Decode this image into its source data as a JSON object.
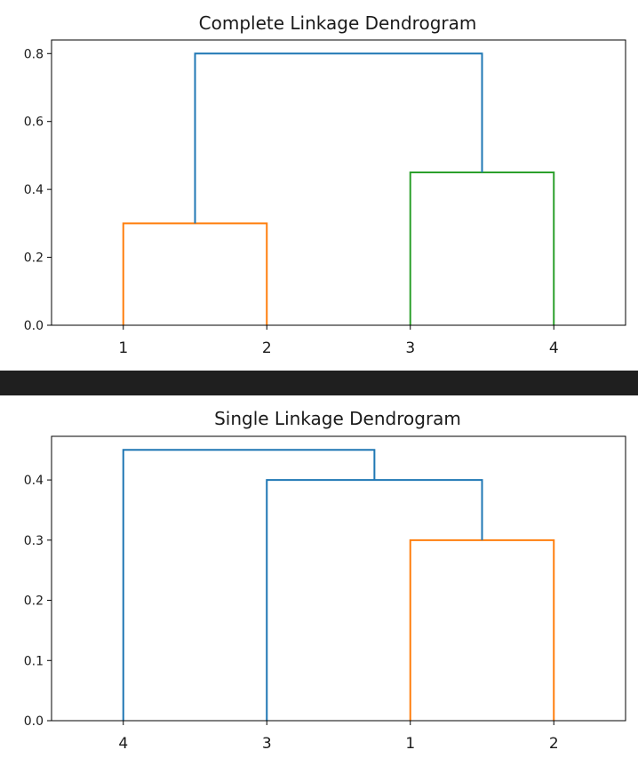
{
  "chart_data": [
    {
      "type": "dendrogram",
      "title": "Complete Linkage Dendrogram",
      "leaves": [
        "1",
        "2",
        "3",
        "4"
      ],
      "ylim": [
        0,
        0.84
      ],
      "yticks": [
        0.0,
        0.2,
        0.4,
        0.6,
        0.8
      ],
      "ytick_labels": [
        "0.0",
        "0.2",
        "0.4",
        "0.6",
        "0.8"
      ],
      "links": [
        {
          "left": 0,
          "right": 1,
          "left_height": 0,
          "right_height": 0,
          "height": 0.3,
          "color": "#ff7f0e"
        },
        {
          "left": 2,
          "right": 3,
          "left_height": 0,
          "right_height": 0,
          "height": 0.45,
          "color": "#2ca02c"
        },
        {
          "left": 0.5,
          "right": 2.5,
          "left_height": 0.3,
          "right_height": 0.45,
          "height": 0.8,
          "color": "#1f77b4"
        }
      ]
    },
    {
      "type": "dendrogram",
      "title": "Single Linkage Dendrogram",
      "leaves": [
        "4",
        "3",
        "1",
        "2"
      ],
      "ylim": [
        0,
        0.4725
      ],
      "yticks": [
        0.0,
        0.1,
        0.2,
        0.3,
        0.4
      ],
      "ytick_labels": [
        "0.0",
        "0.1",
        "0.2",
        "0.3",
        "0.4"
      ],
      "links": [
        {
          "left": 2,
          "right": 3,
          "left_height": 0,
          "right_height": 0,
          "height": 0.3,
          "color": "#ff7f0e"
        },
        {
          "left": 1,
          "right": 2.5,
          "left_height": 0,
          "right_height": 0.3,
          "height": 0.4,
          "color": "#1f77b4"
        },
        {
          "left": 0,
          "right": 1.75,
          "left_height": 0,
          "right_height": 0.4,
          "height": 0.45,
          "color": "#1f77b4"
        }
      ]
    }
  ]
}
